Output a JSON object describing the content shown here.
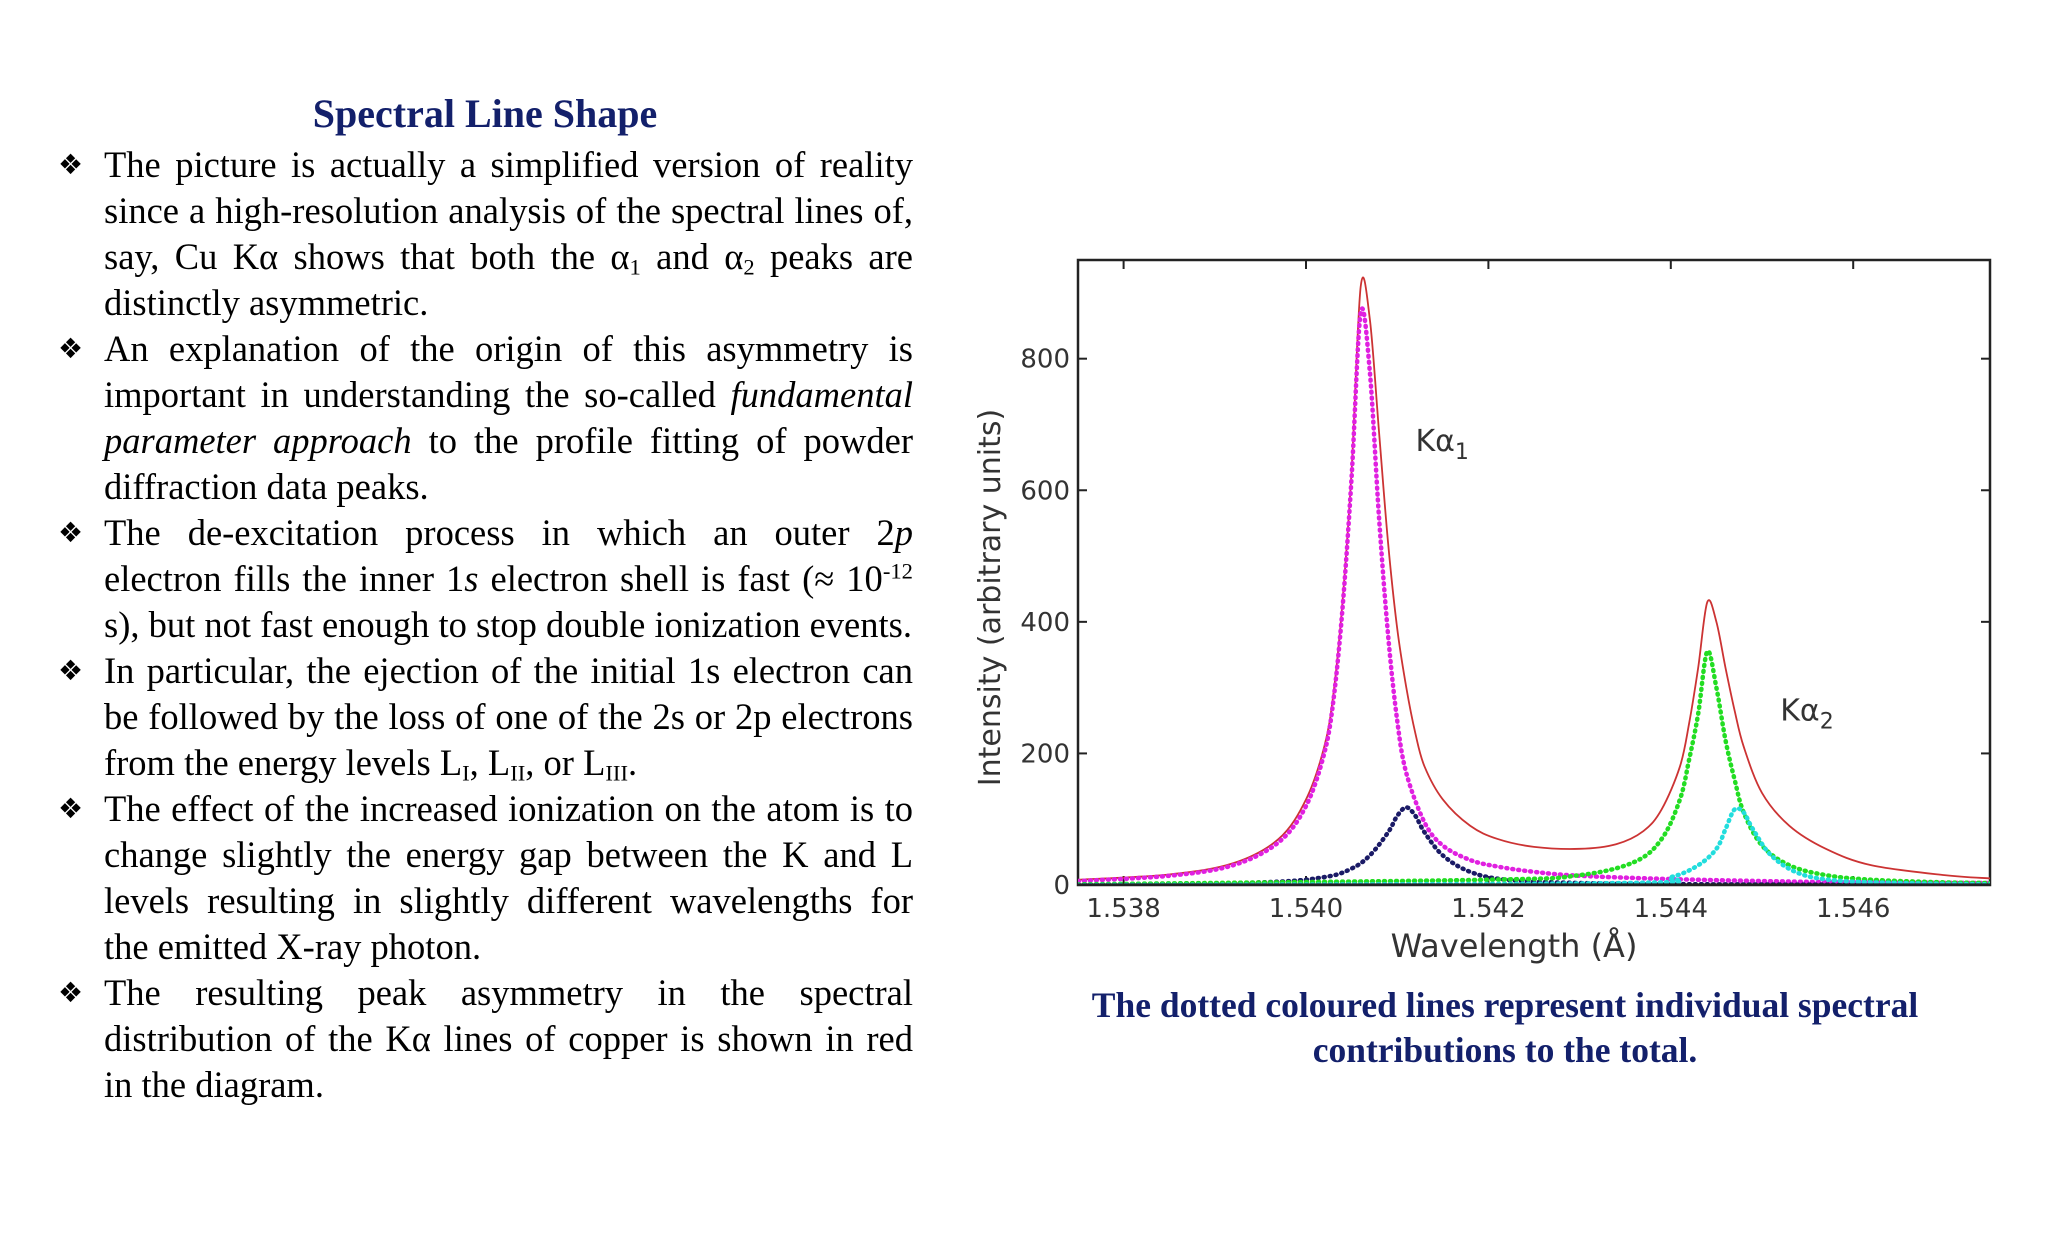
{
  "slide": {
    "title": "Spectral Line Shape",
    "bullet_mark": "❖",
    "caption": "The dotted coloured lines represent individual spectral contributions to the total.",
    "bullets": [
      {
        "segments": [
          {
            "t": "The picture is actually a simplified version of reality since a high-resolution analysis of the spectral lines of, say, Cu Kα shows that both the α"
          },
          {
            "t": "1",
            "style": "sub"
          },
          {
            "t": " and α"
          },
          {
            "t": "2",
            "style": "sub"
          },
          {
            "t": " peaks are distinctly asymmetric."
          }
        ]
      },
      {
        "segments": [
          {
            "t": "An explanation of the origin of this asymmetry is important in understanding the so-called "
          },
          {
            "t": "fundamental parameter approach",
            "style": "i"
          },
          {
            "t": " to the profile fitting of powder diffraction data peaks."
          }
        ]
      },
      {
        "segments": [
          {
            "t": "The de-excitation process in which an outer 2"
          },
          {
            "t": "p",
            "style": "i"
          },
          {
            "t": " electron fills the inner 1"
          },
          {
            "t": "s",
            "style": "i"
          },
          {
            "t": " electron shell is fast (≈ 10"
          },
          {
            "t": "-12",
            "style": "sup"
          },
          {
            "t": " s), but not fast enough to stop double ionization events."
          }
        ]
      },
      {
        "segments": [
          {
            "t": "In particular, the ejection of the initial 1s electron can be followed by the loss of one of the 2s or 2p electrons from the energy levels L"
          },
          {
            "t": "I",
            "style": "sub"
          },
          {
            "t": ", L"
          },
          {
            "t": "II",
            "style": "sub"
          },
          {
            "t": ", or L"
          },
          {
            "t": "III",
            "style": "sub"
          },
          {
            "t": "."
          }
        ]
      },
      {
        "segments": [
          {
            "t": "The effect of the increased ionization on the atom is to change slightly the energy gap between the K and L levels resulting in slightly different wavelengths for the emitted X-ray photon."
          }
        ]
      },
      {
        "segments": [
          {
            "t": "The resulting peak asymmetry in the spectral distribution of the Kα lines of copper is shown in red in the diagram."
          }
        ]
      }
    ]
  },
  "chart_data": {
    "type": "line",
    "xlabel": "Wavelength (Å)",
    "ylabel": "Intensity (arbitrary units)",
    "xlim": [
      1.5375,
      1.5475
    ],
    "ylim": [
      0,
      950
    ],
    "x_ticks": [
      1.538,
      1.54,
      1.542,
      1.544,
      1.546
    ],
    "x_tick_labels": [
      "1.538",
      "1.540",
      "1.542",
      "1.544",
      "1.546"
    ],
    "y_ticks": [
      0,
      200,
      400,
      600,
      800
    ],
    "y_tick_labels": [
      "0",
      "200",
      "400",
      "600",
      "800"
    ],
    "grid": false,
    "annotations": [
      {
        "label": "Kα",
        "sub": "1",
        "x": 1.5412,
        "y": 660
      },
      {
        "label": "Kα",
        "sub": "2",
        "x": 1.5452,
        "y": 250
      }
    ],
    "series": [
      {
        "color": "#cc3333",
        "style": "solid",
        "x": [
          1.5375,
          1.5385,
          1.5392,
          1.5397,
          1.54,
          1.5402,
          1.5403,
          1.5404,
          1.5405,
          1.5406,
          1.5407,
          1.5408,
          1.5409,
          1.541,
          1.5411,
          1.5412,
          1.5413,
          1.5415,
          1.5418,
          1.5421,
          1.5425,
          1.543,
          1.5434,
          1.5437,
          1.5439,
          1.5441,
          1.5442,
          1.5443,
          1.5444,
          1.5445,
          1.5446,
          1.5447,
          1.5448,
          1.545,
          1.5453,
          1.5457,
          1.5462,
          1.547,
          1.5475
        ],
        "y": [
          8,
          16,
          33,
          70,
          130,
          210,
          290,
          430,
          630,
          910,
          860,
          690,
          520,
          390,
          300,
          230,
          180,
          130,
          90,
          70,
          58,
          55,
          62,
          82,
          115,
          180,
          245,
          330,
          430,
          400,
          330,
          265,
          210,
          140,
          90,
          55,
          30,
          15,
          10
        ]
      },
      {
        "color": "#e020e0",
        "style": "dotted",
        "x": [
          1.5375,
          1.5385,
          1.5392,
          1.5397,
          1.54,
          1.5402,
          1.5403,
          1.5404,
          1.5405,
          1.5406,
          1.5407,
          1.5408,
          1.5409,
          1.541,
          1.5411,
          1.5413,
          1.5415,
          1.5418,
          1.5421,
          1.5425,
          1.543,
          1.544,
          1.545,
          1.546,
          1.5475
        ],
        "y": [
          6,
          14,
          30,
          65,
          120,
          200,
          280,
          420,
          620,
          870,
          780,
          560,
          380,
          250,
          170,
          95,
          60,
          38,
          28,
          20,
          14,
          9,
          6,
          4,
          3
        ]
      },
      {
        "color": "#1a1a66",
        "style": "dotted",
        "x": [
          1.5375,
          1.5395,
          1.5402,
          1.5405,
          1.5407,
          1.5409,
          1.541,
          1.5411,
          1.5412,
          1.5413,
          1.5415,
          1.5418,
          1.5422,
          1.543,
          1.5445,
          1.5475
        ],
        "y": [
          0,
          4,
          12,
          25,
          45,
          80,
          105,
          118,
          105,
          80,
          45,
          20,
          8,
          3,
          1,
          0
        ]
      },
      {
        "color": "#22dd22",
        "style": "dotted",
        "x": [
          1.5375,
          1.542,
          1.543,
          1.5436,
          1.5439,
          1.5441,
          1.5442,
          1.5443,
          1.5444,
          1.5445,
          1.5446,
          1.5447,
          1.5448,
          1.545,
          1.5453,
          1.5457,
          1.5462,
          1.547,
          1.5475
        ],
        "y": [
          1,
          8,
          15,
          35,
          70,
          130,
          190,
          260,
          355,
          300,
          220,
          160,
          110,
          60,
          30,
          15,
          8,
          4,
          3
        ]
      },
      {
        "color": "#22dddd",
        "style": "dotted",
        "x": [
          1.5375,
          1.5435,
          1.544,
          1.5443,
          1.5445,
          1.5446,
          1.5447,
          1.5448,
          1.5449,
          1.5451,
          1.5454,
          1.5458,
          1.5465,
          1.5475
        ],
        "y": [
          0,
          3,
          12,
          30,
          55,
          85,
          115,
          110,
          85,
          45,
          18,
          7,
          3,
          1
        ]
      },
      {
        "color": "#222222",
        "style": "solid",
        "x": [
          1.5375,
          1.5475
        ],
        "y": [
          1,
          1
        ]
      }
    ]
  }
}
